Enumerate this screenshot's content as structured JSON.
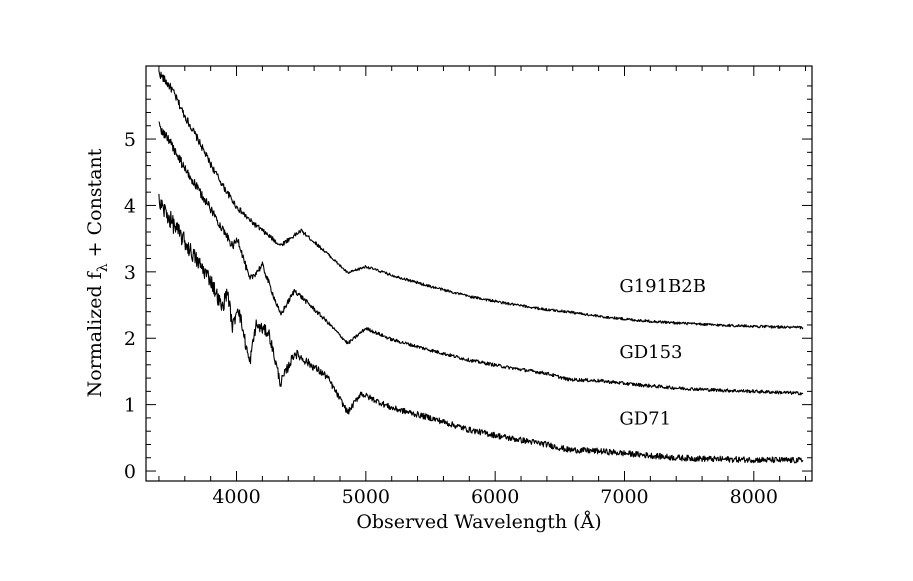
{
  "chart_data": {
    "type": "line",
    "title": "",
    "xlabel": "Observed Wavelength (Å)",
    "ylabel_main": "Normalized f",
    "ylabel_sub": "λ",
    "ylabel_tail": " + Constant",
    "xlim": [
      3300,
      8450
    ],
    "ylim": [
      -0.15,
      6.1
    ],
    "x_ticks": [
      4000,
      5000,
      6000,
      7000,
      8000
    ],
    "x_tick_labels": [
      "4000",
      "5000",
      "6000",
      "7000",
      "8000"
    ],
    "y_ticks": [
      0,
      1,
      2,
      3,
      4,
      5
    ],
    "y_tick_labels": [
      "0",
      "1",
      "2",
      "3",
      "4",
      "5"
    ],
    "grid": false,
    "series": [
      {
        "name": "G191B2B",
        "label": "G191B2B",
        "label_x": 6960,
        "label_y": 2.7,
        "x": [
          3400,
          3500,
          3600,
          3700,
          3800,
          3900,
          4000,
          4100,
          4200,
          4340,
          4500,
          4700,
          4861,
          5000,
          5200,
          5500,
          5800,
          6100,
          6400,
          6563,
          6800,
          7100,
          7400,
          7700,
          8000,
          8380
        ],
        "values": [
          6.0,
          5.75,
          5.35,
          5.0,
          4.62,
          4.28,
          3.98,
          3.78,
          3.62,
          3.4,
          3.62,
          3.28,
          2.98,
          3.08,
          2.95,
          2.78,
          2.63,
          2.52,
          2.43,
          2.4,
          2.33,
          2.27,
          2.23,
          2.2,
          2.18,
          2.16
        ],
        "noise": 0.04
      },
      {
        "name": "GD153",
        "label": "GD153",
        "label_x": 6960,
        "label_y": 1.7,
        "x": [
          3400,
          3500,
          3600,
          3700,
          3800,
          3900,
          3970,
          4010,
          4101,
          4200,
          4340,
          4450,
          4700,
          4861,
          5000,
          5200,
          5500,
          5800,
          6100,
          6400,
          6563,
          6800,
          7100,
          7400,
          7700,
          8000,
          8380
        ],
        "values": [
          5.2,
          4.9,
          4.55,
          4.25,
          3.95,
          3.62,
          3.38,
          3.5,
          2.88,
          3.1,
          2.35,
          2.72,
          2.25,
          1.92,
          2.15,
          1.98,
          1.82,
          1.67,
          1.56,
          1.47,
          1.38,
          1.36,
          1.3,
          1.25,
          1.22,
          1.2,
          1.17
        ],
        "noise": 0.05
      },
      {
        "name": "GD71",
        "label": "GD71",
        "label_x": 6960,
        "label_y": 0.7,
        "x": [
          3400,
          3500,
          3600,
          3700,
          3800,
          3889,
          3930,
          3970,
          4010,
          4101,
          4150,
          4250,
          4340,
          4450,
          4700,
          4861,
          4960,
          5200,
          5500,
          5800,
          6100,
          6400,
          6563,
          6800,
          7100,
          7400,
          7700,
          8000,
          8380
        ],
        "values": [
          4.05,
          3.75,
          3.45,
          3.15,
          2.88,
          2.45,
          2.72,
          2.15,
          2.5,
          1.62,
          2.2,
          2.08,
          1.32,
          1.78,
          1.42,
          0.88,
          1.17,
          0.95,
          0.8,
          0.62,
          0.5,
          0.4,
          0.32,
          0.3,
          0.25,
          0.2,
          0.18,
          0.17,
          0.16
        ],
        "noise": 0.09
      }
    ]
  }
}
